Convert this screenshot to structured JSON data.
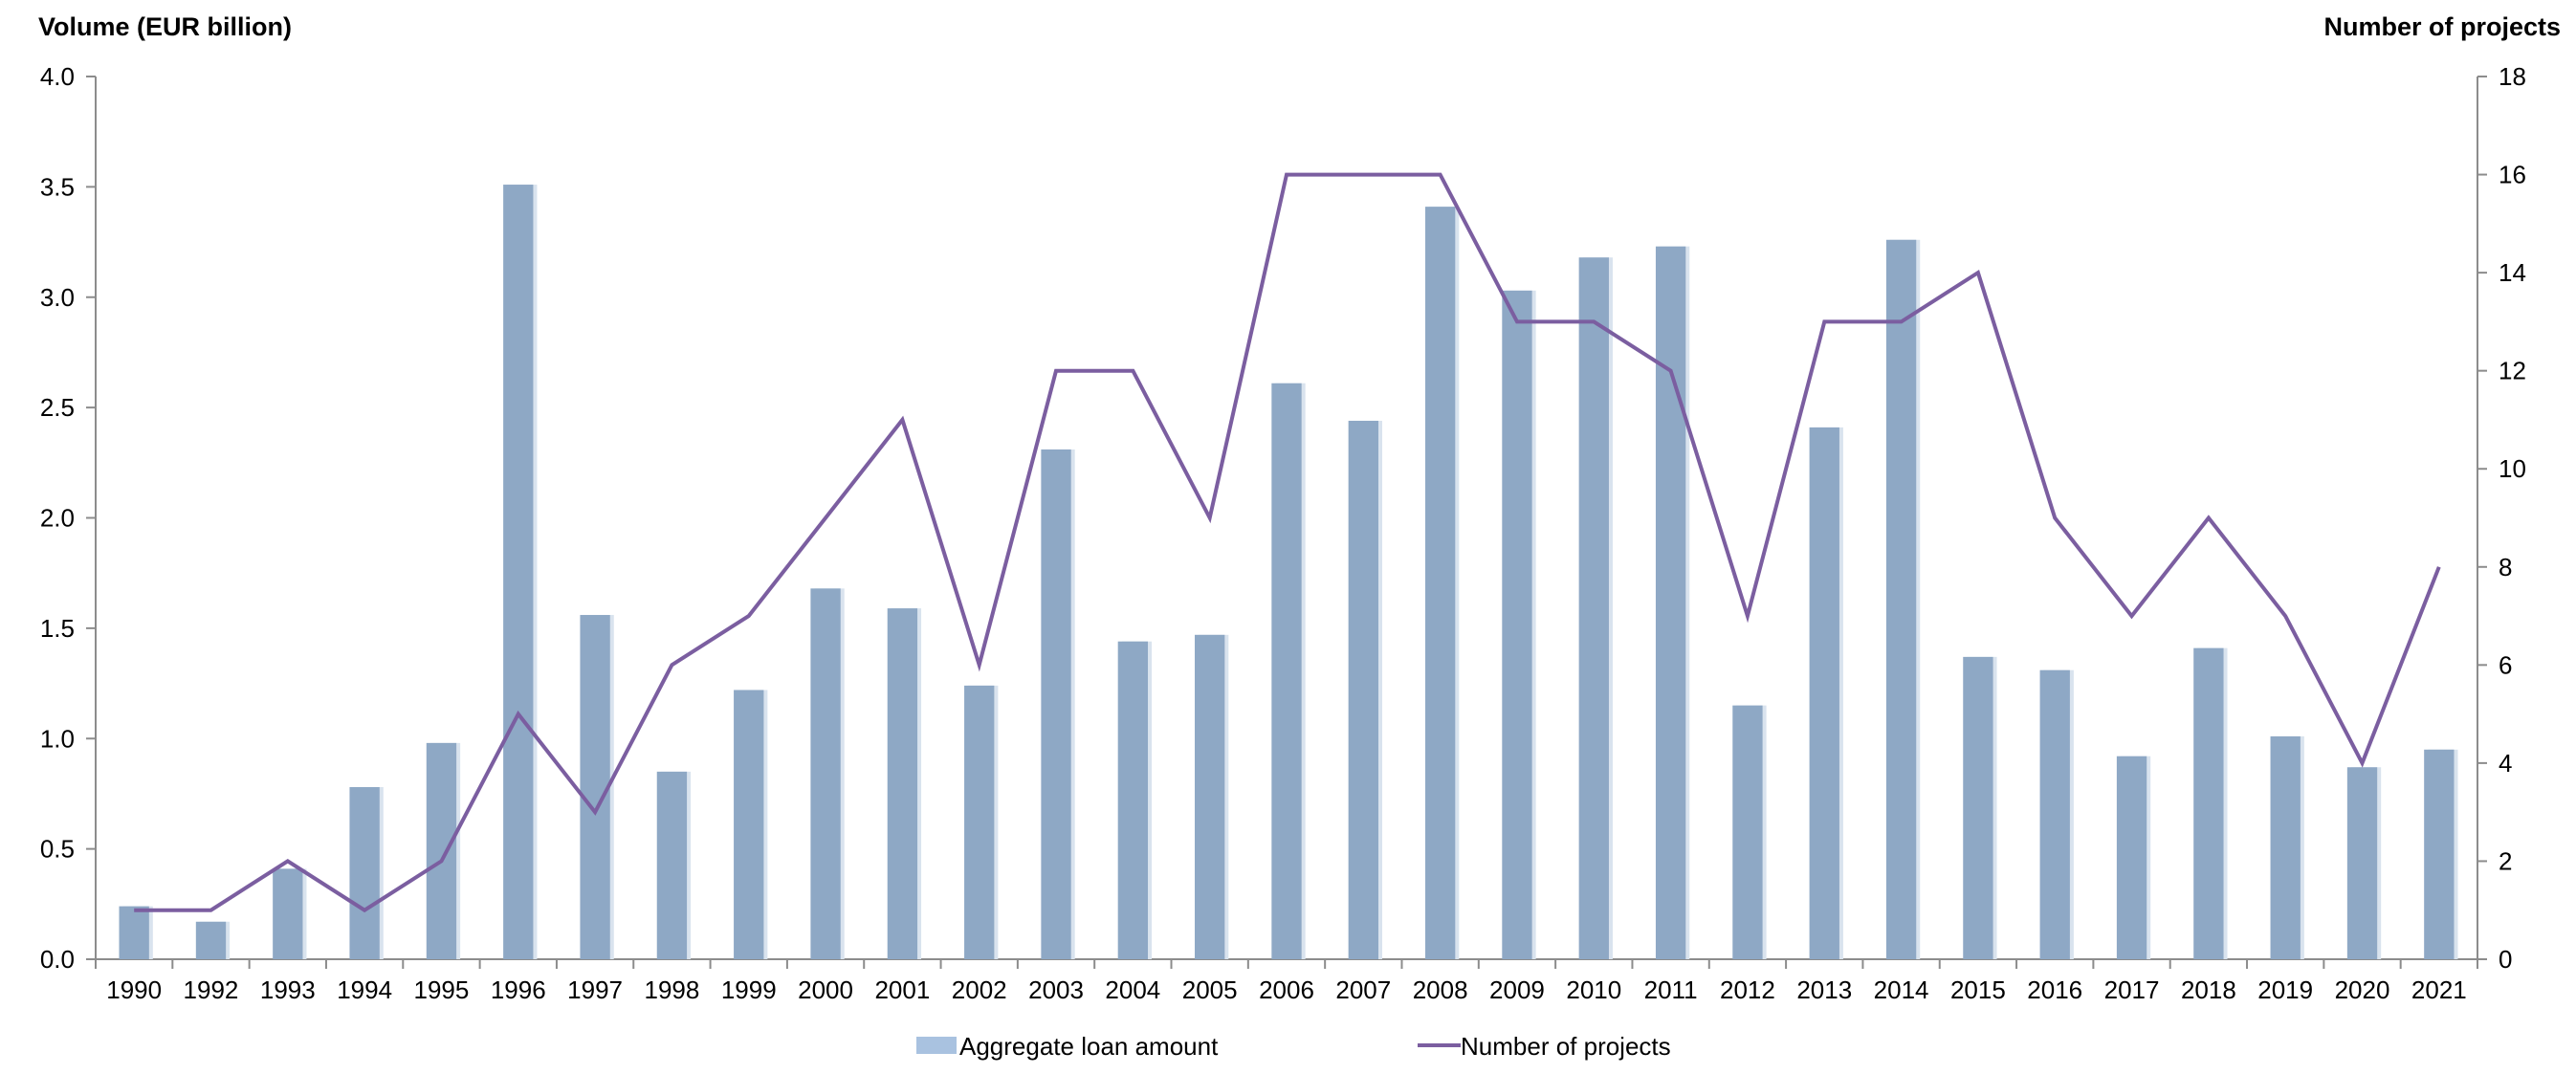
{
  "chart_data": {
    "type": "bar",
    "title": "",
    "ylabel": "Volume (EUR billion)",
    "y2label": "Number of projects",
    "xlabel": "",
    "ylim": [
      0,
      4.0
    ],
    "y2lim": [
      0,
      18
    ],
    "yticks": [
      "0.0",
      "0.5",
      "1.0",
      "1.5",
      "2.0",
      "2.5",
      "3.0",
      "3.5",
      "4.0"
    ],
    "y2ticks": [
      "0",
      "2",
      "4",
      "6",
      "8",
      "10",
      "12",
      "14",
      "16",
      "18"
    ],
    "categories": [
      "1990",
      "1992",
      "1993",
      "1994",
      "1995",
      "1996",
      "1997",
      "1998",
      "1999",
      "2000",
      "2001",
      "2002",
      "2003",
      "2004",
      "2005",
      "2006",
      "2007",
      "2008",
      "2009",
      "2010",
      "2011",
      "2012",
      "2013",
      "2014",
      "2015",
      "2016",
      "2017",
      "2018",
      "2019",
      "2020",
      "2021"
    ],
    "series": [
      {
        "name": "Aggregate loan amount",
        "kind": "bar",
        "axis": "left",
        "color": "#8ea8c5",
        "values": [
          0.24,
          0.17,
          0.41,
          0.78,
          0.98,
          3.51,
          1.56,
          0.85,
          1.22,
          1.68,
          1.59,
          1.24,
          2.31,
          1.44,
          1.47,
          2.61,
          2.44,
          3.41,
          3.03,
          3.18,
          3.23,
          1.15,
          2.41,
          3.26,
          1.37,
          1.31,
          0.92,
          1.41,
          1.01,
          0.87,
          0.95
        ]
      },
      {
        "name": "Number of projects",
        "kind": "line",
        "axis": "right",
        "color": "#7b5ea0",
        "values": [
          1,
          1,
          2,
          1,
          2,
          5,
          3,
          6,
          7,
          9,
          11,
          6,
          12,
          12,
          9,
          16,
          16,
          16,
          13,
          13,
          12,
          7,
          13,
          13,
          14,
          9,
          7,
          9,
          7,
          4,
          8
        ]
      }
    ],
    "legend": {
      "placement": "bottom",
      "bar_swatch_color": "#a9c2e0"
    },
    "grid": false
  }
}
